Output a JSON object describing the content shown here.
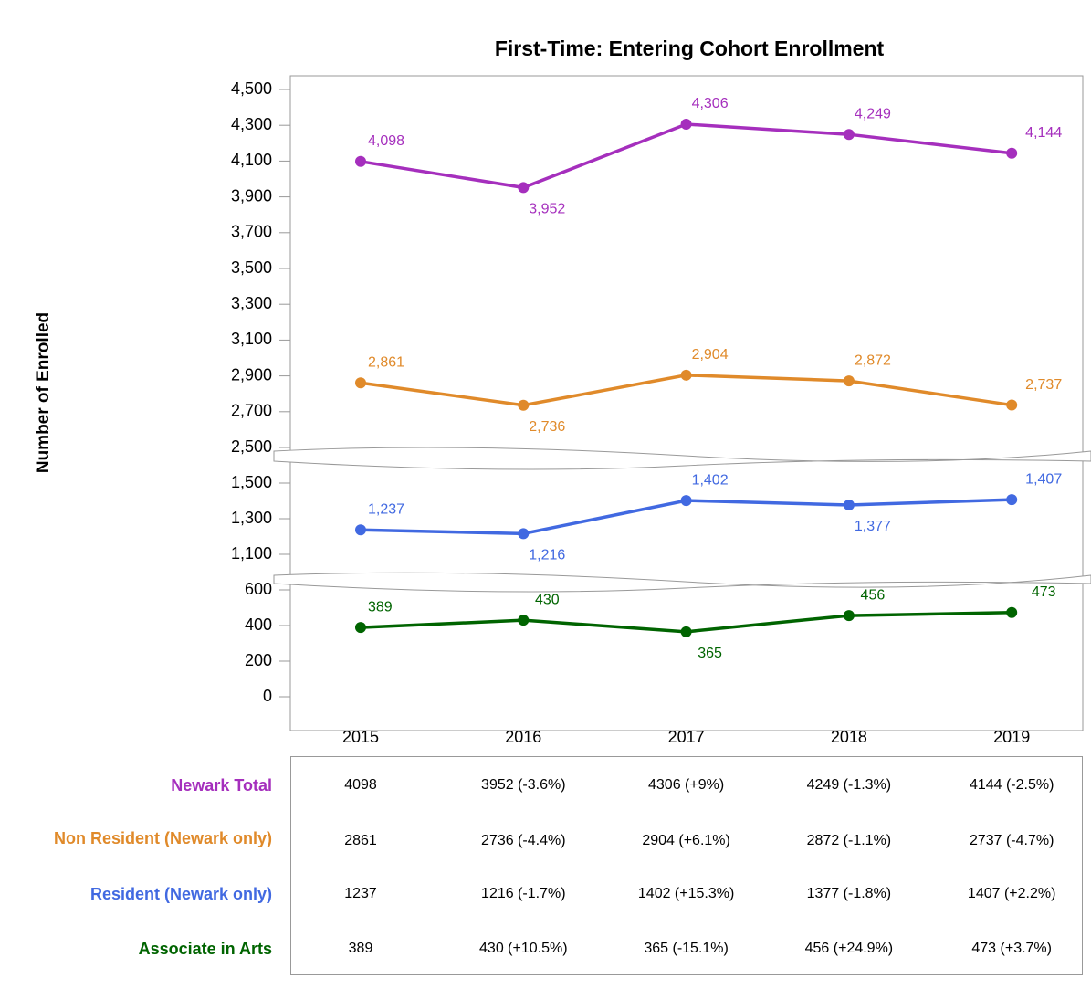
{
  "chart_data": {
    "type": "line",
    "title": "First-Time: Entering Cohort Enrollment",
    "y_label": "Number of Enrolled",
    "categories": [
      "2015",
      "2016",
      "2017",
      "2018",
      "2019"
    ],
    "y_segments": [
      {
        "ylim": [
          2500,
          4500
        ],
        "yticks": [
          {
            "value": 2500,
            "label": "2,500"
          },
          {
            "value": 2700,
            "label": "2,700"
          },
          {
            "value": 2900,
            "label": "2,900"
          },
          {
            "value": 3100,
            "label": "3,100"
          },
          {
            "value": 3300,
            "label": "3,300"
          },
          {
            "value": 3500,
            "label": "3,500"
          },
          {
            "value": 3700,
            "label": "3,700"
          },
          {
            "value": 3900,
            "label": "3,900"
          },
          {
            "value": 4100,
            "label": "4,100"
          },
          {
            "value": 4300,
            "label": "4,300"
          },
          {
            "value": 4500,
            "label": "4,500"
          }
        ]
      },
      {
        "ylim": [
          1100,
          1500
        ],
        "yticks": [
          {
            "value": 1100,
            "label": "1,100"
          },
          {
            "value": 1300,
            "label": "1,300"
          },
          {
            "value": 1500,
            "label": "1,500"
          }
        ]
      },
      {
        "ylim": [
          0,
          600
        ],
        "yticks": [
          0,
          200,
          400,
          600
        ]
      }
    ],
    "series": [
      {
        "name": "Newark Total",
        "color": "#a52fbd",
        "values": [
          4098,
          3952,
          4306,
          4249,
          4144
        ],
        "value_labels": [
          "4,098",
          "3,952",
          "4,306",
          "4,249",
          "4,144"
        ]
      },
      {
        "name": "Non Resident (Newark only)",
        "color": "#e08a2a",
        "values": [
          2861,
          2736,
          2904,
          2872,
          2737
        ],
        "value_labels": [
          "2,861",
          "2,736",
          "2,904",
          "2,872",
          "2,737"
        ]
      },
      {
        "name": "Resident (Newark only)",
        "color": "#4169e1",
        "values": [
          1237,
          1216,
          1402,
          1377,
          1407
        ],
        "value_labels": [
          "1,237",
          "1,216",
          "1,402",
          "1,377",
          "1,407"
        ]
      },
      {
        "name": "Associate in Arts",
        "color": "#006400",
        "values": [
          389,
          430,
          365,
          456,
          473
        ],
        "value_labels": [
          "389",
          "430",
          "365",
          "456",
          "473"
        ]
      }
    ]
  },
  "table": {
    "rows": [
      [
        "4098",
        "3952 (-3.6%)",
        "4306 (+9%)",
        "4249 (-1.3%)",
        "4144 (-2.5%)"
      ],
      [
        "2861",
        "2736 (-4.4%)",
        "2904 (+6.1%)",
        "2872 (-1.1%)",
        "2737 (-4.7%)"
      ],
      [
        "1237",
        "1216 (-1.7%)",
        "1402 (+15.3%)",
        "1377 (-1.8%)",
        "1407 (+2.2%)"
      ],
      [
        "389",
        "430 (+10.5%)",
        "365 (-15.1%)",
        "456 (+24.9%)",
        "473 (+3.7%)"
      ]
    ]
  }
}
